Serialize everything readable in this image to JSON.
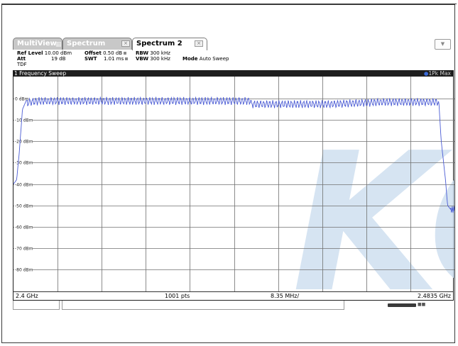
{
  "tabs": [
    {
      "label": "MultiView",
      "icon": "grid-icon",
      "active": false
    },
    {
      "label": "Spectrum",
      "icon": "close-icon",
      "active": false
    },
    {
      "label": "Spectrum 2",
      "icon": "close-icon",
      "active": true
    }
  ],
  "params": {
    "ref_level_label": "Ref Level",
    "ref_level_value": "10.00 dBm",
    "offset_label": "Offset",
    "offset_value": "0.50 dB",
    "rbw_label": "RBW",
    "rbw_value": "300 kHz",
    "att_label": "Att",
    "att_value": "19 dB",
    "swt_label": "SWT",
    "swt_value": "1.01 ms",
    "vbw_label": "VBW",
    "vbw_value": "300 kHz",
    "mode_label": "Mode",
    "mode_value": "Auto Sweep",
    "tdf": "TDF"
  },
  "diagram": {
    "title": "1 Frequency Sweep",
    "trace_label": "1Pk Max",
    "watermark": "KC"
  },
  "footer": {
    "start": "2.4 GHz",
    "points": "1001 pts",
    "span_per_div": "8.35 MHz/",
    "stop": "2.4835 GHz"
  },
  "colors": {
    "trace": "#4a5bd4",
    "watermark": "#c9dcee",
    "grid": "#707070",
    "header_bg": "#1e1e1e"
  },
  "chart_data": {
    "type": "line",
    "x_start_ghz": 2.4,
    "x_stop_ghz": 2.4835,
    "points": 1001,
    "ylim": [
      -90,
      10
    ],
    "y_ticks": [
      "0 dBm",
      "-10 dBm",
      "-20 dBm",
      "-30 dBm",
      "-40 dBm",
      "-50 dBm",
      "-60 dBm",
      "-70 dBm",
      "-80 dBm"
    ],
    "y_tick_values": [
      0,
      -10,
      -20,
      -30,
      -40,
      -50,
      -60,
      -70,
      -80
    ],
    "series": [
      {
        "x": [
          2.4,
          2.4006,
          2.4011,
          2.4017,
          2.4024,
          2.403,
          2.405,
          2.41,
          2.42,
          2.43,
          2.44,
          2.445,
          2.445,
          2.45,
          2.46,
          2.47,
          2.4805,
          2.481,
          2.4818,
          2.4822,
          2.4828,
          2.4835
        ],
        "y": [
          -40,
          -38,
          -25,
          -5,
          -1,
          0,
          0.5,
          0.5,
          0.5,
          0.5,
          0.5,
          0.5,
          -1,
          -1,
          -1,
          0,
          0,
          -20,
          -38,
          -50,
          -52,
          -52
        ]
      }
    ]
  }
}
